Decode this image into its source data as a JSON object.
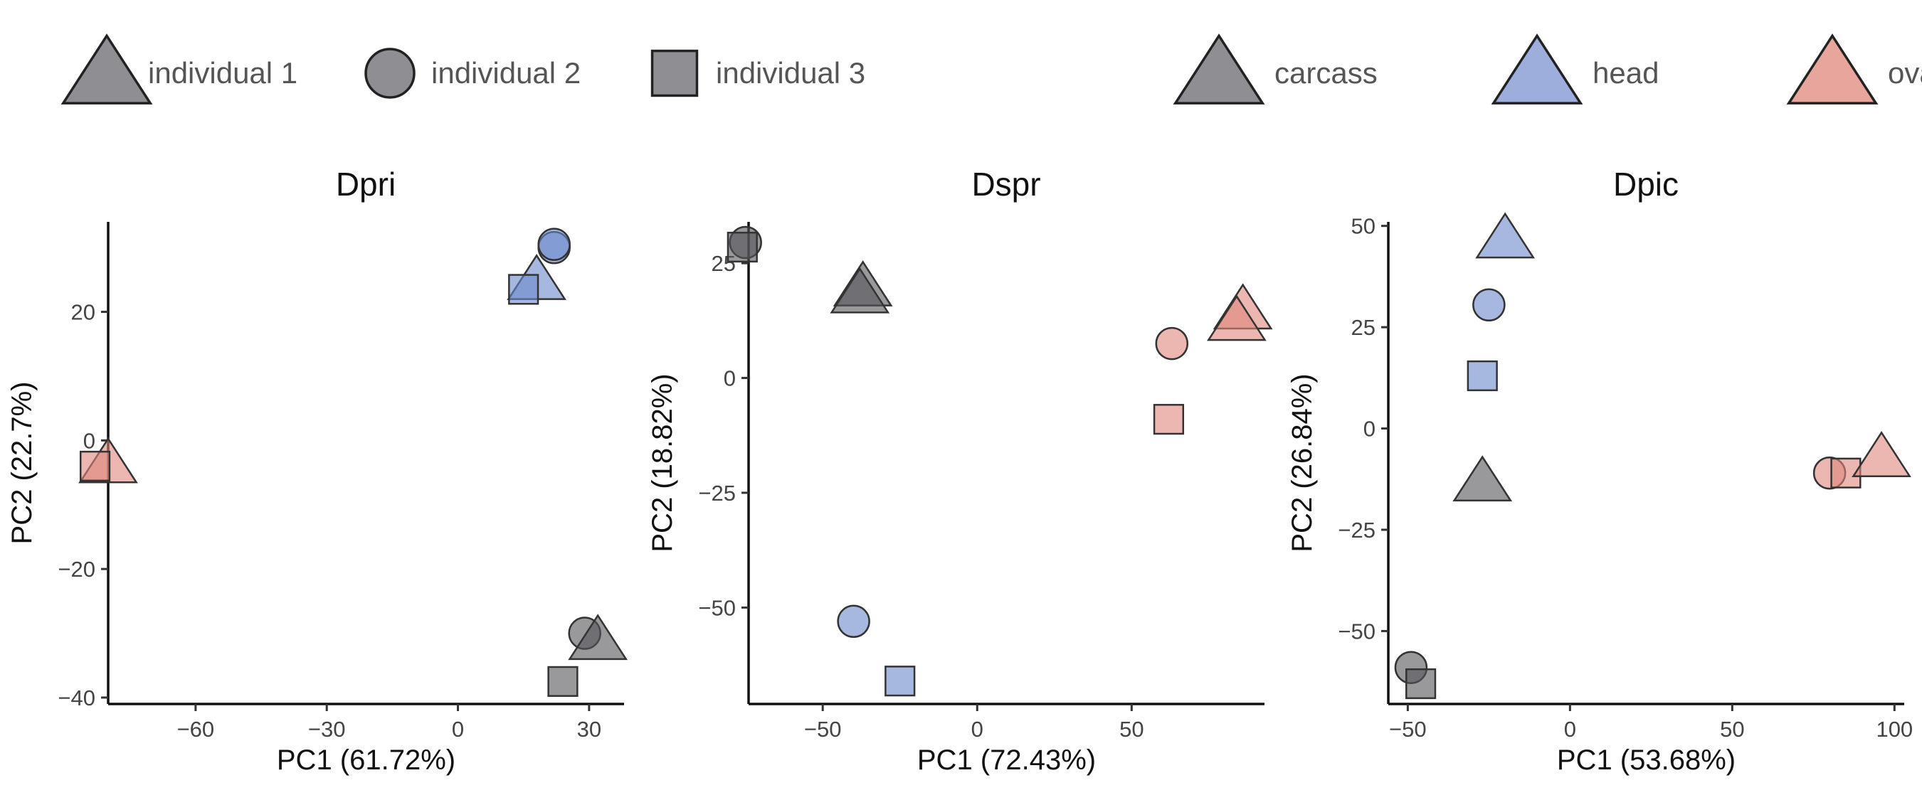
{
  "legend": {
    "individuals": [
      {
        "label": "individual 1",
        "shape": "triangle"
      },
      {
        "label": "individual 2",
        "shape": "circle"
      },
      {
        "label": "individual 3",
        "shape": "square"
      }
    ],
    "tissues": [
      {
        "label": "carcass",
        "color": "#8f8f93"
      },
      {
        "label": "head",
        "color": "#9daedd"
      },
      {
        "label": "ovary",
        "color": "#e8a59b"
      }
    ]
  },
  "colors": {
    "carcass": "#55555a",
    "head": "#6d88cb",
    "ovary": "#e0877b",
    "outline": "#222222"
  },
  "chart_data": [
    {
      "type": "scatter",
      "title": "Dpri",
      "xlabel": "PC1 (61.72%)",
      "ylabel": "PC2 (22.7%)",
      "xlim": [
        -80,
        38
      ],
      "ylim": [
        -41,
        34
      ],
      "xticks": [
        -60,
        -30,
        0,
        30
      ],
      "yticks": [
        -40,
        -20,
        0,
        20
      ],
      "grid": false,
      "points": [
        {
          "tissue": "head",
          "individual": "individual 2",
          "x": 22,
          "y": 30
        },
        {
          "tissue": "head",
          "individual": "individual 2",
          "x": 22,
          "y": 30.5
        },
        {
          "tissue": "head",
          "individual": "individual 1",
          "x": 18,
          "y": 25
        },
        {
          "tissue": "head",
          "individual": "individual 3",
          "x": 15,
          "y": 23.5
        },
        {
          "tissue": "ovary",
          "individual": "individual 1",
          "x": -80,
          "y": -3.5
        },
        {
          "tissue": "ovary",
          "individual": "individual 3",
          "x": -83,
          "y": -4
        },
        {
          "tissue": "carcass",
          "individual": "individual 2",
          "x": 29,
          "y": -30
        },
        {
          "tissue": "carcass",
          "individual": "individual 1",
          "x": 32,
          "y": -31
        },
        {
          "tissue": "carcass",
          "individual": "individual 3",
          "x": 24,
          "y": -37.5
        }
      ]
    },
    {
      "type": "scatter",
      "title": "Dspr",
      "xlabel": "PC1 (72.43%)",
      "ylabel": "PC2 (18.82%)",
      "xlim": [
        -74,
        93
      ],
      "ylim": [
        -71,
        34
      ],
      "xticks": [
        -50,
        0,
        50
      ],
      "yticks": [
        -50,
        -25,
        0,
        25
      ],
      "grid": false,
      "points": [
        {
          "tissue": "carcass",
          "individual": "individual 2",
          "x": -75,
          "y": 29.5
        },
        {
          "tissue": "carcass",
          "individual": "individual 3",
          "x": -76,
          "y": 28.5
        },
        {
          "tissue": "carcass",
          "individual": "individual 1",
          "x": -37,
          "y": 20
        },
        {
          "tissue": "carcass",
          "individual": "individual 1",
          "x": -38,
          "y": 18.5
        },
        {
          "tissue": "ovary",
          "individual": "individual 1",
          "x": 86,
          "y": 15
        },
        {
          "tissue": "ovary",
          "individual": "individual 1",
          "x": 84,
          "y": 12.5
        },
        {
          "tissue": "ovary",
          "individual": "individual 2",
          "x": 63,
          "y": 7.5
        },
        {
          "tissue": "ovary",
          "individual": "individual 3",
          "x": 62,
          "y": -9
        },
        {
          "tissue": "head",
          "individual": "individual 2",
          "x": -40,
          "y": -53
        },
        {
          "tissue": "head",
          "individual": "individual 3",
          "x": -25,
          "y": -66
        }
      ]
    },
    {
      "type": "scatter",
      "title": "Dpic",
      "xlabel": "PC1 (53.68%)",
      "ylabel": "PC2 (26.84%)",
      "xlim": [
        -56,
        103
      ],
      "ylim": [
        -68,
        51
      ],
      "xticks": [
        -50,
        0,
        50,
        100
      ],
      "yticks": [
        -50,
        -25,
        0,
        25,
        50
      ],
      "grid": false,
      "points": [
        {
          "tissue": "head",
          "individual": "individual 1",
          "x": -20,
          "y": 47
        },
        {
          "tissue": "head",
          "individual": "individual 2",
          "x": -25,
          "y": 30.5
        },
        {
          "tissue": "head",
          "individual": "individual 3",
          "x": -27,
          "y": 13
        },
        {
          "tissue": "carcass",
          "individual": "individual 1",
          "x": -27,
          "y": -13
        },
        {
          "tissue": "carcass",
          "individual": "individual 2",
          "x": -49,
          "y": -59
        },
        {
          "tissue": "carcass",
          "individual": "individual 3",
          "x": -46,
          "y": -63
        },
        {
          "tissue": "ovary",
          "individual": "individual 2",
          "x": 80,
          "y": -11
        },
        {
          "tissue": "ovary",
          "individual": "individual 3",
          "x": 85,
          "y": -11
        },
        {
          "tissue": "ovary",
          "individual": "individual 1",
          "x": 96,
          "y": -7
        }
      ]
    }
  ]
}
